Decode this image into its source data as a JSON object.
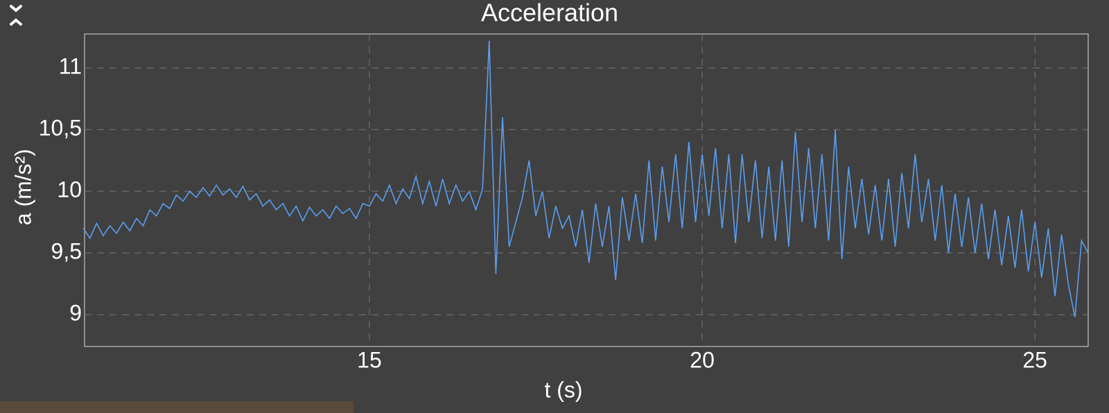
{
  "chart_data": {
    "type": "line",
    "title": "Acceleration",
    "x_label": "t (s)",
    "y_label": "a (m/s²)",
    "x": [
      10.7,
      10.8,
      10.9,
      11.0,
      11.1,
      11.2,
      11.3,
      11.4,
      11.5,
      11.6,
      11.7,
      11.8,
      11.9,
      12.0,
      12.1,
      12.2,
      12.3,
      12.4,
      12.5,
      12.6,
      12.7,
      12.8,
      12.9,
      13.0,
      13.1,
      13.2,
      13.3,
      13.4,
      13.5,
      13.6,
      13.7,
      13.8,
      13.9,
      14.0,
      14.1,
      14.2,
      14.3,
      14.4,
      14.5,
      14.6,
      14.7,
      14.8,
      14.9,
      15.0,
      15.1,
      15.2,
      15.3,
      15.4,
      15.5,
      15.6,
      15.7,
      15.8,
      15.9,
      16.0,
      16.1,
      16.2,
      16.3,
      16.4,
      16.5,
      16.6,
      16.7,
      16.8,
      16.9,
      17.0,
      17.1,
      17.2,
      17.3,
      17.4,
      17.5,
      17.6,
      17.7,
      17.8,
      17.9,
      18.0,
      18.1,
      18.2,
      18.3,
      18.4,
      18.5,
      18.6,
      18.7,
      18.8,
      18.9,
      19.0,
      19.1,
      19.2,
      19.3,
      19.4,
      19.5,
      19.6,
      19.7,
      19.8,
      19.9,
      20.0,
      20.1,
      20.2,
      20.3,
      20.4,
      20.5,
      20.6,
      20.7,
      20.8,
      20.9,
      21.0,
      21.1,
      21.2,
      21.3,
      21.4,
      21.5,
      21.6,
      21.7,
      21.8,
      21.9,
      22.0,
      22.1,
      22.2,
      22.3,
      22.4,
      22.5,
      22.6,
      22.7,
      22.8,
      22.9,
      23.0,
      23.1,
      23.2,
      23.3,
      23.4,
      23.5,
      23.6,
      23.7,
      23.8,
      23.9,
      24.0,
      24.1,
      24.2,
      24.3,
      24.4,
      24.5,
      24.6,
      24.7,
      24.8,
      24.9,
      25.0,
      25.1,
      25.2,
      25.3,
      25.4,
      25.5,
      25.6,
      25.7,
      25.8
    ],
    "series": [
      {
        "color": "#5a9ef0",
        "values": [
          9.7,
          9.62,
          9.74,
          9.64,
          9.72,
          9.66,
          9.75,
          9.68,
          9.78,
          9.72,
          9.85,
          9.8,
          9.9,
          9.86,
          9.97,
          9.92,
          10.0,
          9.95,
          10.03,
          9.96,
          10.05,
          9.97,
          10.02,
          9.95,
          10.04,
          9.93,
          9.98,
          9.88,
          9.93,
          9.85,
          9.9,
          9.8,
          9.88,
          9.76,
          9.87,
          9.8,
          9.85,
          9.78,
          9.88,
          9.82,
          9.86,
          9.78,
          9.9,
          9.88,
          9.98,
          9.92,
          10.05,
          9.9,
          10.02,
          9.94,
          10.12,
          9.9,
          10.08,
          9.88,
          10.1,
          9.9,
          10.05,
          9.92,
          10.0,
          9.85,
          10.02,
          11.22,
          9.33,
          10.6,
          9.55,
          9.75,
          9.95,
          10.25,
          9.8,
          10.0,
          9.62,
          9.88,
          9.7,
          9.8,
          9.55,
          9.85,
          9.42,
          9.9,
          9.55,
          9.88,
          9.28,
          9.95,
          9.6,
          9.98,
          9.58,
          10.25,
          9.6,
          10.2,
          9.75,
          10.3,
          9.7,
          10.4,
          9.75,
          10.3,
          9.8,
          10.35,
          9.7,
          10.3,
          9.58,
          10.3,
          9.75,
          10.25,
          9.62,
          10.2,
          9.6,
          10.25,
          9.55,
          10.48,
          9.75,
          10.35,
          9.7,
          10.3,
          9.6,
          10.5,
          9.45,
          10.2,
          9.7,
          10.1,
          9.65,
          10.05,
          9.6,
          10.1,
          9.55,
          10.15,
          9.7,
          10.3,
          9.75,
          10.1,
          9.6,
          10.05,
          9.5,
          9.98,
          9.55,
          9.95,
          9.5,
          9.9,
          9.45,
          9.85,
          9.4,
          9.8,
          9.38,
          9.85,
          9.35,
          9.75,
          9.3,
          9.7,
          9.15,
          9.65,
          9.25,
          8.98,
          9.6,
          9.5
        ]
      }
    ],
    "xlim": [
      10.72,
      25.8
    ],
    "ylim": [
      8.742,
      11.275
    ],
    "xticks": [
      15,
      20,
      25
    ],
    "yticks": [
      9,
      {
        "value": 9.5,
        "label": "9,5"
      },
      10,
      {
        "value": 10.5,
        "label": "10,5"
      },
      11
    ],
    "grid": true
  }
}
